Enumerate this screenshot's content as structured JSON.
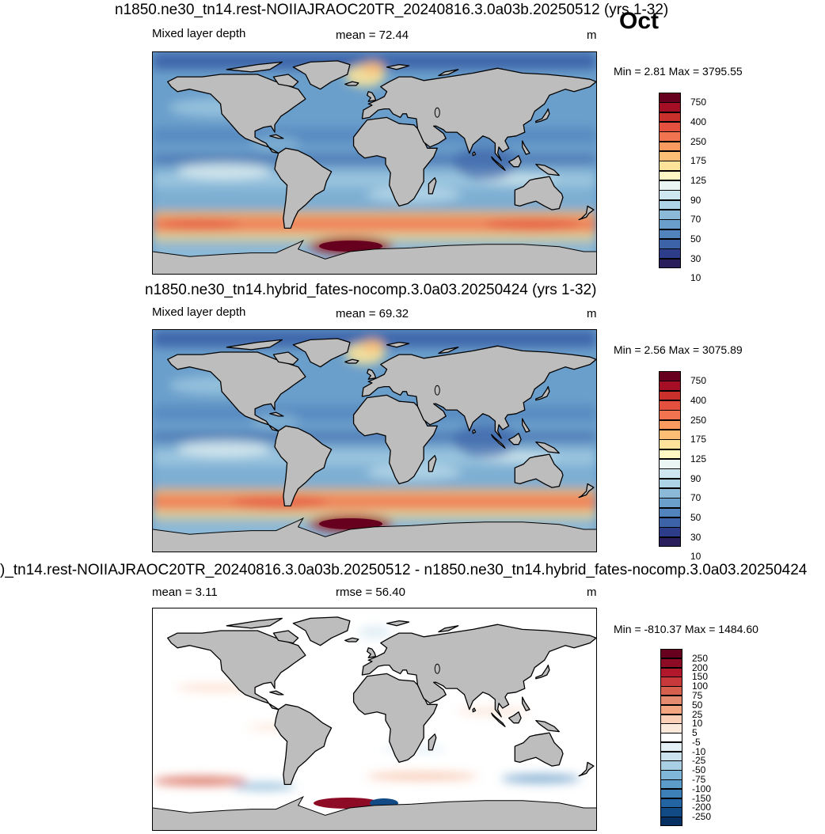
{
  "month": "Oct",
  "panels": [
    {
      "title": "n1850.ne30_tn14.rest-NOIIAJRAOC20TR_20240816.3.0a03b.20250512 (yrs 1-32)",
      "left_label": "Mixed layer depth",
      "center_label": "mean =  72.44",
      "units": "m",
      "minmax": "Min =   2.81 Max = 3795.55",
      "colorbar_labels": [
        "750",
        "400",
        "250",
        "175",
        "125",
        "90",
        "70",
        "50",
        "30",
        "10"
      ]
    },
    {
      "title": "n1850.ne30_tn14.hybrid_fates-nocomp.3.0a03.20250424 (yrs 1-32)",
      "left_label": "Mixed layer depth",
      "center_label": "mean =  69.32",
      "units": "m",
      "minmax": "Min =   2.56 Max = 3075.89",
      "colorbar_labels": [
        "750",
        "400",
        "250",
        "175",
        "125",
        "90",
        "70",
        "50",
        "30",
        "10"
      ]
    },
    {
      "title": ")_tn14.rest-NOIIAJRAOC20TR_20240816.3.0a03b.20250512 - n1850.ne30_tn14.hybrid_fates-nocomp.3.0a03.20250424",
      "left_label": "mean =   3.11",
      "center_label": "rmse =  56.40",
      "units": "m",
      "minmax": "Min = -810.37 Max = 1484.60",
      "colorbar_labels": [
        "250",
        "200",
        "150",
        "100",
        "75",
        "50",
        "25",
        "10",
        "5",
        "-5",
        "-10",
        "-25",
        "-50",
        "-75",
        "-100",
        "-150",
        "-200",
        "-250"
      ]
    }
  ],
  "colors": {
    "mld_scale": [
      "#67001f",
      "#a50f26",
      "#c9302c",
      "#e3503d",
      "#f2734f",
      "#f99a5f",
      "#fcbd74",
      "#fde49a",
      "#fff8c4",
      "#ebf6f4",
      "#cde6f0",
      "#acd3e6",
      "#8bbad8",
      "#6b9fcb",
      "#5183bd",
      "#3c62a8",
      "#2e3d8a",
      "#2a1e5c"
    ],
    "diff_scale": [
      "#67001f",
      "#8e0b26",
      "#b2182b",
      "#c7393a",
      "#d6604d",
      "#e58b70",
      "#f4a582",
      "#fbcfb5",
      "#fde8dc",
      "#ffffff",
      "#e4eef5",
      "#cde2ef",
      "#a9cfe5",
      "#80b6d8",
      "#5c9cc8",
      "#3d80b8",
      "#2364a3",
      "#124a86",
      "#053061"
    ],
    "land": "#bdbdbd"
  }
}
